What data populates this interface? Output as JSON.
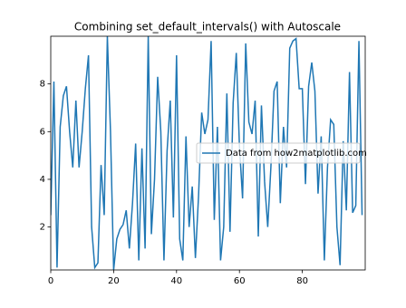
{
  "chart_data": {
    "type": "line",
    "title": "Combining set_default_intervals() with Autoscale",
    "x": [
      0,
      1,
      2,
      3,
      4,
      5,
      6,
      7,
      8,
      9,
      10,
      11,
      12,
      13,
      14,
      15,
      16,
      17,
      18,
      19,
      20,
      21,
      22,
      23,
      24,
      25,
      26,
      27,
      28,
      29,
      30,
      31,
      32,
      33,
      34,
      35,
      36,
      37,
      38,
      39,
      40,
      41,
      42,
      43,
      44,
      45,
      46,
      47,
      48,
      49,
      50,
      51,
      52,
      53,
      54,
      55,
      56,
      57,
      58,
      59,
      60,
      61,
      62,
      63,
      64,
      65,
      66,
      67,
      68,
      69,
      70,
      71,
      72,
      73,
      74,
      75,
      76,
      77,
      78,
      79,
      80,
      81,
      82,
      83,
      84,
      85,
      86,
      87,
      88,
      89,
      90,
      91,
      92,
      93,
      94,
      95,
      96,
      97,
      98,
      99
    ],
    "series": [
      {
        "name": "Data from how2matplotlib.com",
        "color": "#1f77b4",
        "values": [
          2.5,
          8.1,
          0.3,
          6.2,
          7.5,
          7.9,
          6.0,
          4.5,
          7.3,
          4.5,
          6.0,
          7.8,
          9.2,
          2.0,
          0.3,
          0.5,
          4.6,
          2.5,
          10.0,
          6.0,
          0.2,
          1.5,
          1.9,
          2.1,
          2.7,
          1.1,
          3.0,
          5.5,
          0.6,
          5.3,
          1.1,
          10.0,
          1.7,
          4.0,
          8.3,
          6.0,
          0.6,
          5.2,
          7.3,
          2.4,
          9.2,
          1.5,
          0.6,
          5.8,
          2.0,
          3.7,
          0.7,
          3.3,
          6.8,
          5.9,
          6.5,
          9.8,
          2.3,
          6.2,
          0.6,
          2.0,
          7.6,
          1.8,
          7.2,
          9.3,
          5.4,
          3.2,
          9.7,
          6.4,
          5.9,
          7.3,
          1.6,
          7.1,
          3.9,
          2.0,
          4.5,
          7.7,
          8.1,
          3.0,
          6.2,
          4.5,
          9.5,
          9.8,
          9.9,
          7.8,
          7.8,
          3.8,
          7.9,
          8.9,
          7.7,
          3.4,
          5.8,
          0.6,
          4.5,
          6.5,
          6.3,
          2.0,
          0.4,
          5.6,
          2.7,
          8.5,
          2.6,
          2.9,
          9.8,
          2.5
        ]
      }
    ],
    "xlim": [
      0,
      100
    ],
    "xticks": [
      0,
      20,
      40,
      60,
      80
    ],
    "ylim": [
      0.2,
      10
    ],
    "yticks": [
      2,
      4,
      6,
      8
    ],
    "legend": "center right"
  }
}
